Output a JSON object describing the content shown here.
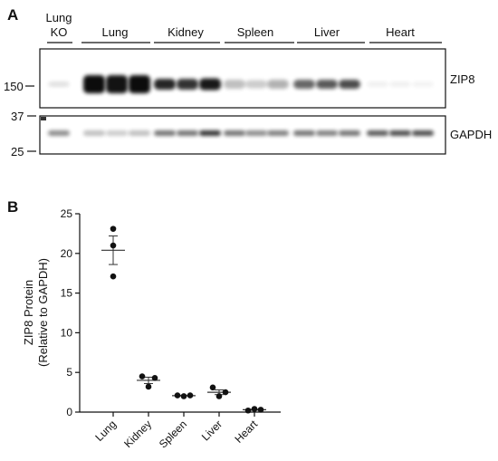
{
  "panel_a": {
    "label": "A",
    "lanes": [
      {
        "name": "Lung KO",
        "line1": "Lung",
        "line2": "KO"
      },
      {
        "name": "Lung"
      },
      {
        "name": "Kidney"
      },
      {
        "name": "Spleen"
      },
      {
        "name": "Liver"
      },
      {
        "name": "Heart"
      }
    ],
    "blot_labels": {
      "upper": "ZIP8",
      "lower": "GAPDH"
    },
    "markers": [
      "150",
      "37",
      "25"
    ]
  },
  "panel_b": {
    "label": "B"
  },
  "chart_data": {
    "type": "scatter",
    "title": "",
    "ylabel": "ZIP8 Protein (Relative to GAPDH)",
    "ylabel_lines": [
      "ZIP8 Protein",
      "(Relative to GAPDH)"
    ],
    "xlabel": "",
    "categories": [
      "Lung",
      "Kidney",
      "Spleen",
      "Liver",
      "Heart"
    ],
    "points": [
      [
        23.1,
        21.0,
        17.1
      ],
      [
        4.5,
        4.3,
        3.2
      ],
      [
        2.1,
        2.0,
        2.1
      ],
      [
        3.1,
        2.5,
        2.0
      ],
      [
        0.2,
        0.4,
        0.3
      ]
    ],
    "means": [
      20.4,
      4.0,
      2.07,
      2.5,
      0.3
    ],
    "sem": [
      1.8,
      0.4,
      0.03,
      0.3,
      0.06
    ],
    "ylim": [
      0,
      25
    ],
    "yticks": [
      0,
      5,
      10,
      15,
      20,
      25
    ],
    "colors": {
      "points": "#111111",
      "bars": "#333333"
    }
  }
}
